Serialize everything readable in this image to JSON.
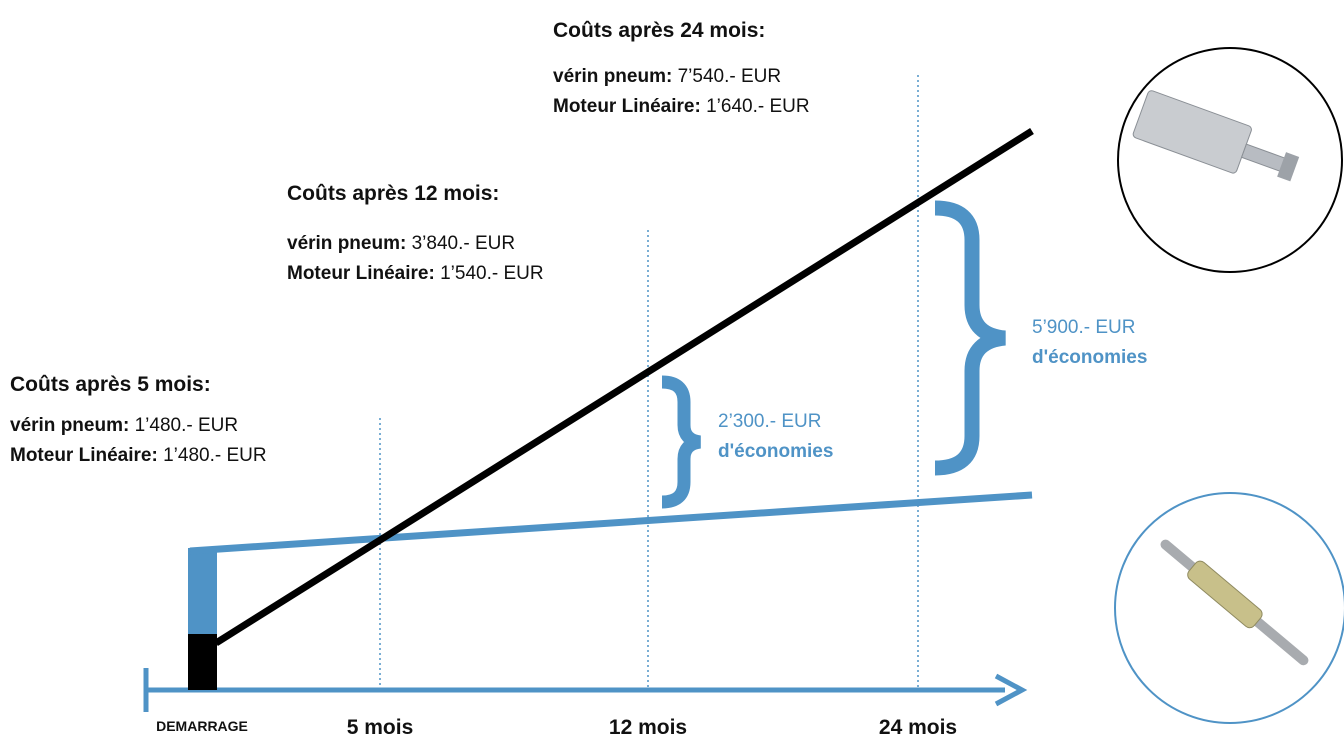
{
  "milestones": [
    {
      "title": "Coûts après 5 mois:",
      "rows": [
        {
          "label": "vérin pneum:",
          "value": "1’480.- EUR"
        },
        {
          "label": "Moteur Linéaire:",
          "value": "1’480.- EUR"
        }
      ]
    },
    {
      "title": "Coûts après 12 mois:",
      "rows": [
        {
          "label": "vérin pneum:",
          "value": "3’840.- EUR"
        },
        {
          "label": "Moteur Linéaire:",
          "value": "1’540.- EUR"
        }
      ]
    },
    {
      "title": "Coûts après 24 mois:",
      "rows": [
        {
          "label": "vérin pneum:",
          "value": "7’540.- EUR"
        },
        {
          "label": "Moteur Linéaire:",
          "value": "1’640.- EUR"
        }
      ]
    }
  ],
  "savings": [
    {
      "amount": "2’300.- EUR",
      "label": "d'économies"
    },
    {
      "amount": "5’900.- EUR",
      "label": "d'économies"
    }
  ],
  "axis": {
    "start": "DEMARRAGE",
    "ticks": [
      "5 mois",
      "12 mois",
      "24 mois"
    ]
  }
}
